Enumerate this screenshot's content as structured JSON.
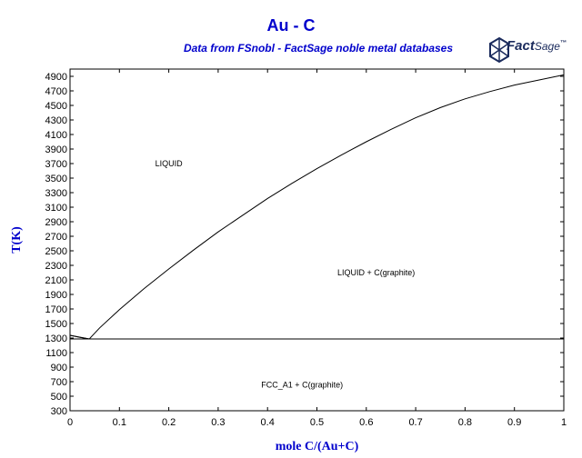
{
  "header": {
    "title": "Au - C",
    "subtitle": "Data from FSnobl - FactSage noble metal databases",
    "logo_text": "Fact",
    "logo_text_2": "Sage",
    "logo_mark": "™"
  },
  "chart_data": {
    "type": "line",
    "title": "Au - C",
    "subtitle": "Data from FSnobl - FactSage noble metal databases",
    "xlabel": "mole C/(Au+C)",
    "ylabel": "T(K)",
    "xlim": [
      0,
      1
    ],
    "ylim": [
      300,
      4900
    ],
    "x_ticks": [
      0,
      0.1,
      0.2,
      0.3,
      0.4,
      0.5,
      0.6,
      0.7,
      0.8,
      0.9,
      1
    ],
    "x_tick_labels": [
      "0",
      "0.1",
      "0.2",
      "0.3",
      "0.4",
      "0.5",
      "0.6",
      "0.7",
      "0.8",
      "0.9",
      "1"
    ],
    "y_ticks": [
      300,
      500,
      700,
      900,
      1100,
      1300,
      1500,
      1700,
      1900,
      2100,
      2300,
      2500,
      2700,
      2900,
      3100,
      3300,
      3500,
      3700,
      3900,
      4100,
      4300,
      4500,
      4700,
      4900
    ],
    "grid": false,
    "line_color": "#000000",
    "series": [
      {
        "values": [
          [
            0,
            1337
          ],
          [
            0.02,
            1310
          ],
          [
            0.039,
            1288
          ],
          [
            0.06,
            1440
          ],
          [
            0.1,
            1690
          ],
          [
            0.15,
            1980
          ],
          [
            0.2,
            2250
          ],
          [
            0.25,
            2510
          ],
          [
            0.3,
            2760
          ],
          [
            0.35,
            2990
          ],
          [
            0.4,
            3220
          ],
          [
            0.45,
            3430
          ],
          [
            0.5,
            3630
          ],
          [
            0.55,
            3820
          ],
          [
            0.6,
            4000
          ],
          [
            0.65,
            4170
          ],
          [
            0.7,
            4330
          ],
          [
            0.75,
            4470
          ],
          [
            0.8,
            4590
          ],
          [
            0.85,
            4690
          ],
          [
            0.9,
            4780
          ],
          [
            0.95,
            4850
          ],
          [
            1.0,
            4920
          ]
        ]
      },
      {
        "values": [
          [
            0,
            1337
          ],
          [
            0.039,
            1288
          ]
        ]
      },
      {
        "values": [
          [
            0,
            1288
          ],
          [
            1.0,
            1288
          ]
        ]
      }
    ],
    "annotations": [
      {
        "text": "LIQUID",
        "x": 0.2,
        "y": 3660
      },
      {
        "text": "LIQUID + C(graphite)",
        "x": 0.62,
        "y": 2160
      },
      {
        "text": "FCC_A1 + C(graphite)",
        "x": 0.47,
        "y": 620
      }
    ]
  }
}
